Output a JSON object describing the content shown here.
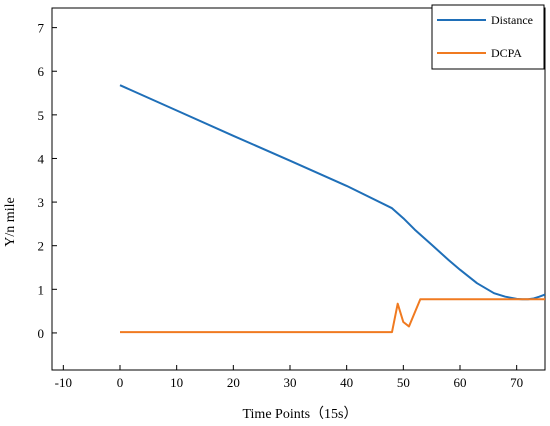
{
  "chart_data": {
    "type": "line",
    "title": "",
    "xlabel": "Time Points（15s）",
    "ylabel": "Y/n mile",
    "xlim": [
      -12,
      75
    ],
    "ylim": [
      -0.85,
      7.45
    ],
    "xticks": [
      -10,
      0,
      10,
      20,
      30,
      40,
      50,
      60,
      70
    ],
    "yticks": [
      0,
      1,
      2,
      3,
      4,
      5,
      6,
      7
    ],
    "grid": false,
    "legend_position": "top-right",
    "series": [
      {
        "name": "Distance",
        "color": "#1f6fb8",
        "x": [
          0,
          10,
          20,
          30,
          40,
          48,
          50,
          52,
          55,
          58,
          60,
          63,
          66,
          68,
          70,
          71,
          72,
          73,
          74,
          75
        ],
        "y": [
          5.68,
          5.1,
          4.52,
          3.95,
          3.37,
          2.86,
          2.63,
          2.37,
          2.02,
          1.67,
          1.45,
          1.14,
          0.91,
          0.83,
          0.78,
          0.77,
          0.77,
          0.79,
          0.83,
          0.88
        ]
      },
      {
        "name": "DCPA",
        "color": "#f07a20",
        "x": [
          0,
          10,
          20,
          30,
          40,
          48,
          49,
          50,
          51,
          53,
          55,
          60,
          65,
          70,
          75
        ],
        "y": [
          0.02,
          0.02,
          0.02,
          0.02,
          0.02,
          0.02,
          0.67,
          0.25,
          0.15,
          0.77,
          0.77,
          0.77,
          0.77,
          0.77,
          0.77
        ]
      }
    ]
  }
}
